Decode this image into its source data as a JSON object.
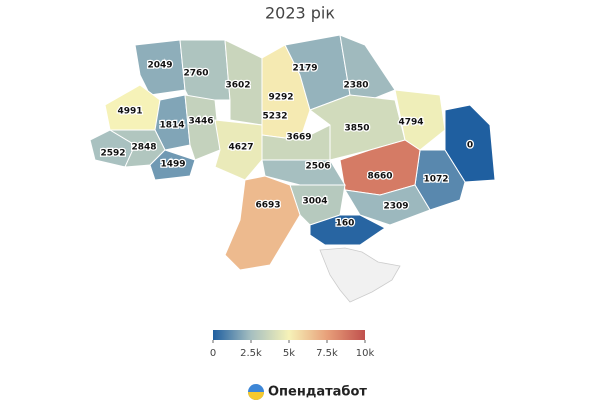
{
  "chart_data": {
    "type": "choropleth",
    "title": "2023 рік",
    "values": [
      2049,
      2760,
      3602,
      9292,
      5232,
      2179,
      2380,
      4991,
      1814,
      3446,
      2592,
      2848,
      1499,
      4627,
      3669,
      3850,
      4794,
      0,
      1072,
      8660,
      2506,
      3004,
      6693,
      2309,
      160
    ],
    "colorscale": [
      "#1f5fa0",
      "#a6bfc0",
      "#f6f2b8",
      "#e8a07a",
      "#c0504d"
    ],
    "clim": [
      0,
      10000
    ],
    "cticks": [
      0,
      {
        "value": 2500,
        "label": "2.5k"
      },
      {
        "value": 5000,
        "label": "5k"
      },
      {
        "value": 7500,
        "label": "7.5k"
      },
      {
        "value": 10000,
        "label": "10k"
      }
    ]
  },
  "footer": {
    "brand": "Опендатабот"
  }
}
